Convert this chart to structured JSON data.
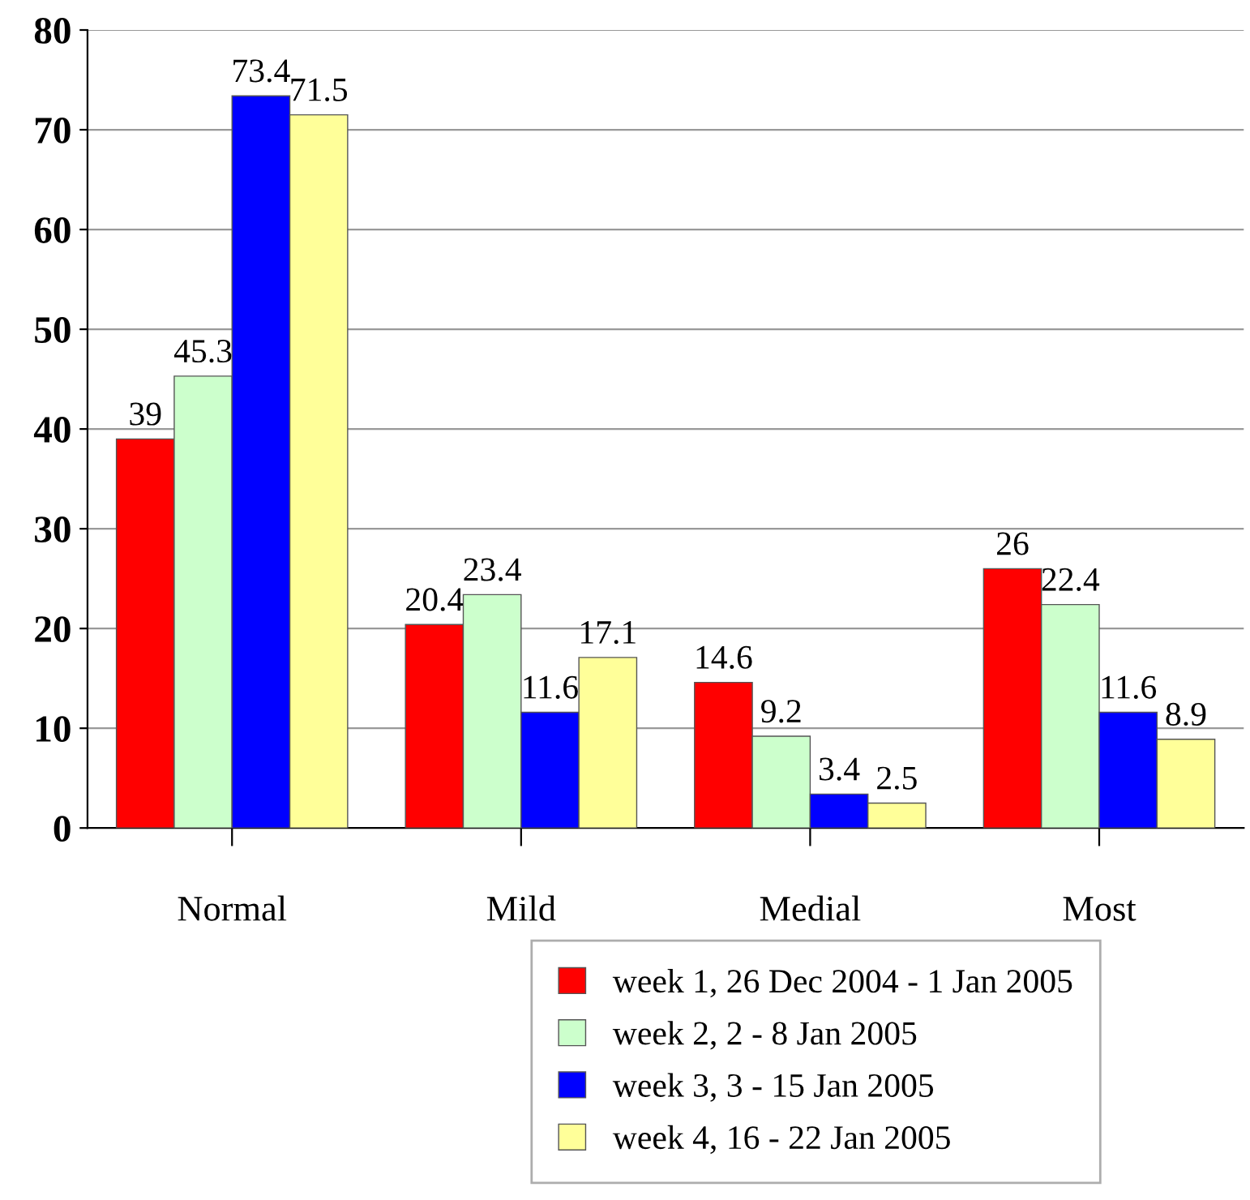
{
  "chart_data": {
    "type": "bar",
    "categories": [
      "Normal",
      "Mild",
      "Medial",
      "Most"
    ],
    "series": [
      {
        "name": "week 1, 26 Dec 2004 - 1 Jan 2005",
        "color": "#ff0000",
        "values": [
          39,
          20.4,
          14.6,
          26
        ]
      },
      {
        "name": "week 2, 2 - 8 Jan 2005",
        "color": "#ccffcc",
        "values": [
          45.3,
          23.4,
          9.2,
          22.4
        ]
      },
      {
        "name": "week 3, 3 - 15 Jan 2005",
        "color": "#0000ff",
        "values": [
          73.4,
          11.6,
          3.4,
          11.6
        ]
      },
      {
        "name": "week 4, 16 - 22 Jan 2005",
        "color": "#ffff99",
        "values": [
          71.5,
          17.1,
          2.5,
          8.9
        ]
      }
    ],
    "ylim": [
      0,
      80
    ],
    "yticks": [
      0,
      10,
      20,
      30,
      40,
      50,
      60,
      70,
      80
    ],
    "grid": "y",
    "legend": "bottom",
    "data_labels": true
  }
}
